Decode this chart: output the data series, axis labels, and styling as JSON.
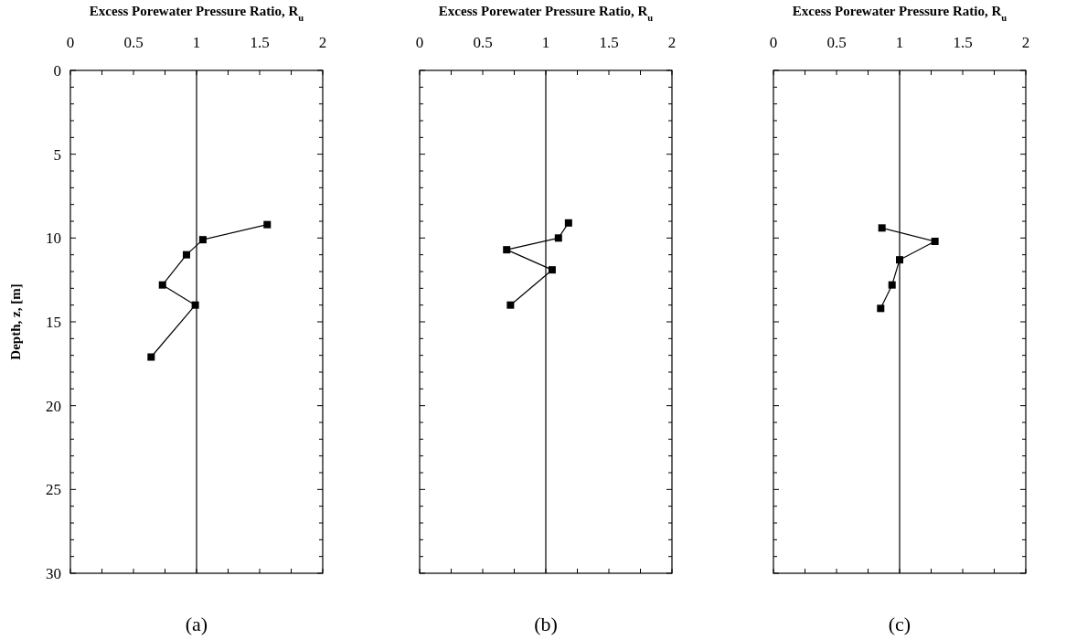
{
  "chart_data": [
    {
      "type": "line",
      "xlabel": "Excess Porewater Pressure Ratio, R$_{u}$",
      "ylabel": "Depth, z, [m]",
      "annotations": [
        "(a)"
      ],
      "marker": "square",
      "line_style": "solid",
      "grid": false,
      "xlim": [
        0,
        2
      ],
      "ylim": [
        30,
        0
      ],
      "xticks": [
        0,
        {
          "value": 0.25,
          "label": null
        },
        0.5,
        {
          "value": 0.75,
          "label": null
        },
        1,
        {
          "value": 1.25,
          "label": null
        },
        1.5,
        {
          "value": 1.75,
          "label": null
        },
        2
      ],
      "yticks": [
        0,
        {
          "value": 1,
          "label": null
        },
        {
          "value": 2,
          "label": null
        },
        {
          "value": 3,
          "label": null
        },
        {
          "value": 4,
          "label": null
        },
        5,
        {
          "value": 6,
          "label": null
        },
        {
          "value": 7,
          "label": null
        },
        {
          "value": 8,
          "label": null
        },
        {
          "value": 9,
          "label": null
        },
        10,
        {
          "value": 11,
          "label": null
        },
        {
          "value": 12,
          "label": null
        },
        {
          "value": 13,
          "label": null
        },
        {
          "value": 14,
          "label": null
        },
        15,
        {
          "value": 16,
          "label": null
        },
        {
          "value": 17,
          "label": null
        },
        {
          "value": 18,
          "label": null
        },
        {
          "value": 19,
          "label": null
        },
        20,
        {
          "value": 21,
          "label": null
        },
        {
          "value": 22,
          "label": null
        },
        {
          "value": 23,
          "label": null
        },
        {
          "value": 24,
          "label": null
        },
        25,
        {
          "value": 26,
          "label": null
        },
        {
          "value": 27,
          "label": null
        },
        {
          "value": 28,
          "label": null
        },
        {
          "value": 29,
          "label": null
        },
        30
      ],
      "ref_lines": [
        {
          "axis": "x",
          "value": 1,
          "color": "#000000"
        }
      ],
      "series": [
        {
          "color": "#000000",
          "x": [
            1.56,
            1.05,
            0.92,
            0.73,
            0.99,
            0.64
          ],
          "values": [
            9.2,
            10.1,
            11,
            12.8,
            14,
            17.1
          ]
        }
      ]
    },
    {
      "type": "line",
      "xlabel": "Excess Porewater Pressure Ratio, R$_{u}$",
      "annotations": [
        "(b)"
      ],
      "marker": "square",
      "line_style": "solid",
      "grid": false,
      "tick_labels": "x",
      "xlim": [
        0,
        2
      ],
      "ylim": [
        30,
        0
      ],
      "xticks": [
        0,
        {
          "value": 0.25,
          "label": null
        },
        0.5,
        {
          "value": 0.75,
          "label": null
        },
        1,
        {
          "value": 1.25,
          "label": null
        },
        1.5,
        {
          "value": 1.75,
          "label": null
        },
        2
      ],
      "yticks": [
        0,
        {
          "value": 1,
          "label": null
        },
        {
          "value": 2,
          "label": null
        },
        {
          "value": 3,
          "label": null
        },
        {
          "value": 4,
          "label": null
        },
        5,
        {
          "value": 6,
          "label": null
        },
        {
          "value": 7,
          "label": null
        },
        {
          "value": 8,
          "label": null
        },
        {
          "value": 9,
          "label": null
        },
        10,
        {
          "value": 11,
          "label": null
        },
        {
          "value": 12,
          "label": null
        },
        {
          "value": 13,
          "label": null
        },
        {
          "value": 14,
          "label": null
        },
        15,
        {
          "value": 16,
          "label": null
        },
        {
          "value": 17,
          "label": null
        },
        {
          "value": 18,
          "label": null
        },
        {
          "value": 19,
          "label": null
        },
        20,
        {
          "value": 21,
          "label": null
        },
        {
          "value": 22,
          "label": null
        },
        {
          "value": 23,
          "label": null
        },
        {
          "value": 24,
          "label": null
        },
        25,
        {
          "value": 26,
          "label": null
        },
        {
          "value": 27,
          "label": null
        },
        {
          "value": 28,
          "label": null
        },
        {
          "value": 29,
          "label": null
        },
        30
      ],
      "ref_lines": [
        {
          "axis": "x",
          "value": 1,
          "color": "#000000"
        }
      ],
      "series": [
        {
          "color": "#000000",
          "x": [
            1.18,
            1.1,
            0.69,
            1.05,
            0.72
          ],
          "values": [
            9.1,
            10,
            10.7,
            11.9,
            14
          ]
        }
      ]
    },
    {
      "type": "line",
      "xlabel": "Excess Porewater Pressure Ratio, R$_{u}$",
      "annotations": [
        "(c)"
      ],
      "marker": "square",
      "line_style": "solid",
      "grid": false,
      "tick_labels": "x",
      "xlim": [
        0,
        2
      ],
      "ylim": [
        30,
        0
      ],
      "xticks": [
        0,
        {
          "value": 0.25,
          "label": null
        },
        0.5,
        {
          "value": 0.75,
          "label": null
        },
        1,
        {
          "value": 1.25,
          "label": null
        },
        1.5,
        {
          "value": 1.75,
          "label": null
        },
        2
      ],
      "yticks": [
        0,
        {
          "value": 1,
          "label": null
        },
        {
          "value": 2,
          "label": null
        },
        {
          "value": 3,
          "label": null
        },
        {
          "value": 4,
          "label": null
        },
        5,
        {
          "value": 6,
          "label": null
        },
        {
          "value": 7,
          "label": null
        },
        {
          "value": 8,
          "label": null
        },
        {
          "value": 9,
          "label": null
        },
        10,
        {
          "value": 11,
          "label": null
        },
        {
          "value": 12,
          "label": null
        },
        {
          "value": 13,
          "label": null
        },
        {
          "value": 14,
          "label": null
        },
        15,
        {
          "value": 16,
          "label": null
        },
        {
          "value": 17,
          "label": null
        },
        {
          "value": 18,
          "label": null
        },
        {
          "value": 19,
          "label": null
        },
        20,
        {
          "value": 21,
          "label": null
        },
        {
          "value": 22,
          "label": null
        },
        {
          "value": 23,
          "label": null
        },
        {
          "value": 24,
          "label": null
        },
        25,
        {
          "value": 26,
          "label": null
        },
        {
          "value": 27,
          "label": null
        },
        {
          "value": 28,
          "label": null
        },
        {
          "value": 29,
          "label": null
        },
        30
      ],
      "ref_lines": [
        {
          "axis": "x",
          "value": 1,
          "color": "#000000"
        }
      ],
      "series": [
        {
          "color": "#000000",
          "x": [
            0.86,
            1.28,
            1.0,
            0.94,
            0.85
          ],
          "values": [
            9.4,
            10.2,
            11.3,
            12.8,
            14.2
          ]
        }
      ]
    }
  ]
}
